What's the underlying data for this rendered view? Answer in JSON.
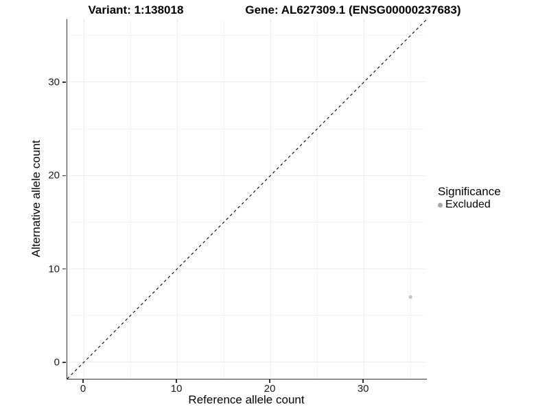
{
  "chart_data": {
    "type": "scatter",
    "title_left": "Variant: 1:138018",
    "title_right": "Gene: AL627309.1 (ENSG00000237683)",
    "xlabel": "Reference allele count",
    "ylabel": "Alternative allele count",
    "x_ticks": [
      0,
      10,
      20,
      30
    ],
    "y_ticks": [
      0,
      10,
      20,
      30
    ],
    "grid_positions": [
      0,
      5,
      10,
      15,
      20,
      25,
      30,
      35
    ],
    "x_range": [
      -1.77,
      36.75
    ],
    "y_range": [
      -1.77,
      36.75
    ],
    "grid": "on",
    "reference_line": {
      "kind": "identity y=x",
      "style": "dashed",
      "color": "#111111"
    },
    "series": [
      {
        "name": "Excluded",
        "point_color": "#c2c2c2",
        "points": [
          {
            "x": 35,
            "y": 7
          }
        ]
      }
    ],
    "legend": {
      "title": "Significance",
      "position": "right",
      "items": [
        {
          "label": "Excluded",
          "color": "#a8a8a8"
        }
      ]
    },
    "style": {
      "grid_major_color": "#ececec",
      "grid_minor_color": "#f5f5f5",
      "axis_line_color": "#333333",
      "tick_label_color": "#1a1a1a",
      "point_radius": 2.6
    }
  }
}
